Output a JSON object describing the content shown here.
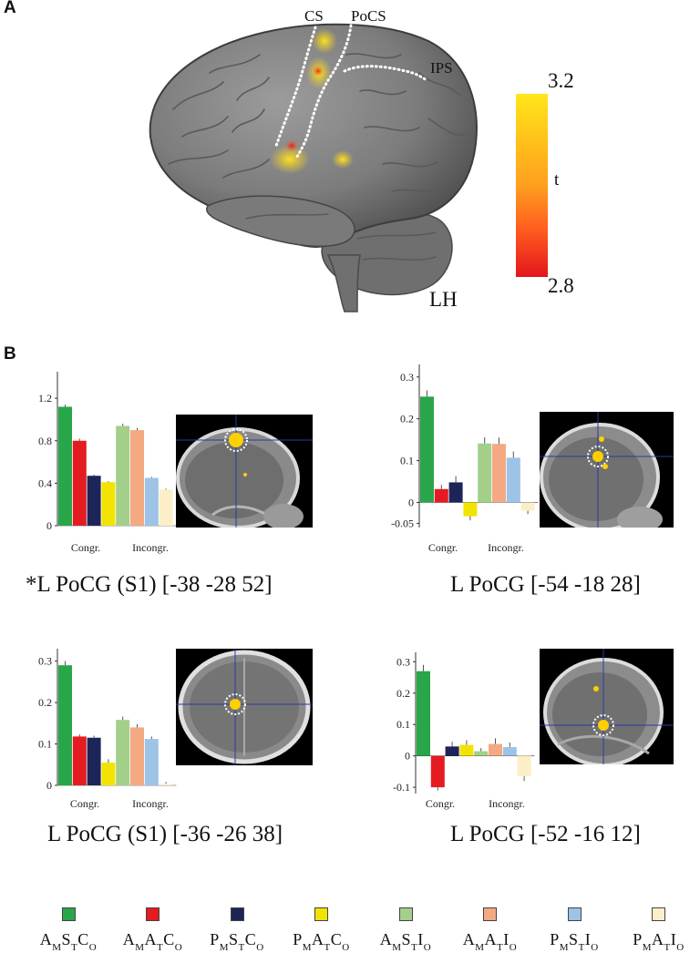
{
  "panel_a": {
    "letter": "A",
    "labels": {
      "cs": "CS",
      "pocs": "PoCS",
      "ips": "IPS",
      "lh": "LH"
    },
    "colorbar": {
      "max": "3.2",
      "min": "2.8",
      "label": "t",
      "top_color": "#ffe61a",
      "bottom_color": "#e3151d"
    }
  },
  "panel_b": {
    "letter": "B"
  },
  "colors": {
    "AMSTCO": "#2aa64a",
    "AMATCO": "#e41c22",
    "PMSTCO": "#1d2458",
    "PMATCO": "#f2e400",
    "AMSTIO": "#a3cf8a",
    "AMATIO": "#f4a983",
    "PMSTIO": "#9dc3e6",
    "PMATIO": "#fcefc8"
  },
  "legend": [
    {
      "key": "AMSTCO",
      "parts": [
        "A",
        "M",
        "S",
        "T",
        "C",
        "O"
      ]
    },
    {
      "key": "AMATCO",
      "parts": [
        "A",
        "M",
        "A",
        "T",
        "C",
        "O"
      ]
    },
    {
      "key": "PMSTCO",
      "parts": [
        "P",
        "M",
        "S",
        "T",
        "C",
        "O"
      ]
    },
    {
      "key": "PMATCO",
      "parts": [
        "P",
        "M",
        "A",
        "T",
        "C",
        "O"
      ]
    },
    {
      "key": "AMSTIO",
      "parts": [
        "A",
        "M",
        "S",
        "T",
        "I",
        "O"
      ]
    },
    {
      "key": "AMATIO",
      "parts": [
        "A",
        "M",
        "A",
        "T",
        "I",
        "O"
      ]
    },
    {
      "key": "PMSTIO",
      "parts": [
        "P",
        "M",
        "S",
        "T",
        "I",
        "O"
      ]
    },
    {
      "key": "PMATIO",
      "parts": [
        "P",
        "M",
        "A",
        "T",
        "I",
        "O"
      ]
    }
  ],
  "chart_data": [
    {
      "type": "bar",
      "title": "*L PoCG (S1) [-38 -28 52]",
      "group_labels": [
        "Congr.",
        "Incongr."
      ],
      "ylim": [
        0,
        1.45
      ],
      "yticks": [
        0,
        0.4,
        0.8,
        1.2
      ],
      "ytick_labels": [
        "0",
        "0.4",
        "0.8",
        "1.2"
      ],
      "keys": [
        "AMSTCO",
        "AMATCO",
        "PMSTCO",
        "PMATCO",
        "AMSTIO",
        "AMATIO",
        "PMSTIO",
        "PMATIO"
      ],
      "values": [
        1.12,
        0.8,
        0.47,
        0.41,
        0.94,
        0.9,
        0.45,
        0.34
      ],
      "errors": [
        0.02,
        0.02,
        0.01,
        0.01,
        0.02,
        0.02,
        0.01,
        0.01
      ]
    },
    {
      "type": "bar",
      "title": "L PoCG [-54 -18 28]",
      "group_labels": [
        "Congr.",
        "Incongr."
      ],
      "ylim": [
        -0.06,
        0.33
      ],
      "yticks": [
        -0.05,
        0,
        0.1,
        0.2,
        0.3
      ],
      "ytick_labels": [
        "-0.05",
        "0",
        "0.1",
        "0.2",
        "0.3"
      ],
      "keys": [
        "AMSTCO",
        "AMATCO",
        "PMSTCO",
        "PMATCO",
        "AMSTIO",
        "AMATIO",
        "PMSTIO",
        "PMATIO"
      ],
      "values": [
        0.253,
        0.032,
        0.048,
        -0.033,
        0.141,
        0.14,
        0.107,
        -0.02
      ],
      "errors": [
        0.015,
        0.01,
        0.015,
        0.01,
        0.015,
        0.015,
        0.015,
        0.008
      ]
    },
    {
      "type": "bar",
      "title": "L PoCG (S1) [-36 -26 38]",
      "group_labels": [
        "Congr.",
        "Incongr."
      ],
      "ylim": [
        0,
        0.33
      ],
      "yticks": [
        0,
        0.1,
        0.2,
        0.3
      ],
      "ytick_labels": [
        "0",
        "0.1",
        "0.2",
        "0.3"
      ],
      "keys": [
        "AMSTCO",
        "AMATCO",
        "PMSTCO",
        "PMATCO",
        "AMSTIO",
        "AMATIO",
        "PMSTIO",
        "PMATIO"
      ],
      "values": [
        0.29,
        0.118,
        0.115,
        0.055,
        0.158,
        0.14,
        0.112,
        0.004
      ],
      "errors": [
        0.01,
        0.005,
        0.005,
        0.008,
        0.008,
        0.008,
        0.006,
        0.004
      ]
    },
    {
      "type": "bar",
      "title": "L PoCG [-52 -16 12]",
      "group_labels": [
        "Congr.",
        "Incongr."
      ],
      "ylim": [
        -0.12,
        0.33
      ],
      "yticks": [
        -0.1,
        0,
        0.1,
        0.2,
        0.3
      ],
      "ytick_labels": [
        "-0.1",
        "0",
        "0.1",
        "0.2",
        "0.3"
      ],
      "keys": [
        "AMSTCO",
        "AMATCO",
        "PMSTCO",
        "PMATCO",
        "AMSTIO",
        "AMATIO",
        "PMSTIO",
        "PMATIO"
      ],
      "values": [
        0.27,
        -0.1,
        0.03,
        0.035,
        0.015,
        0.038,
        0.028,
        -0.065
      ],
      "errors": [
        0.02,
        0.01,
        0.015,
        0.015,
        0.01,
        0.018,
        0.015,
        0.015
      ]
    }
  ]
}
